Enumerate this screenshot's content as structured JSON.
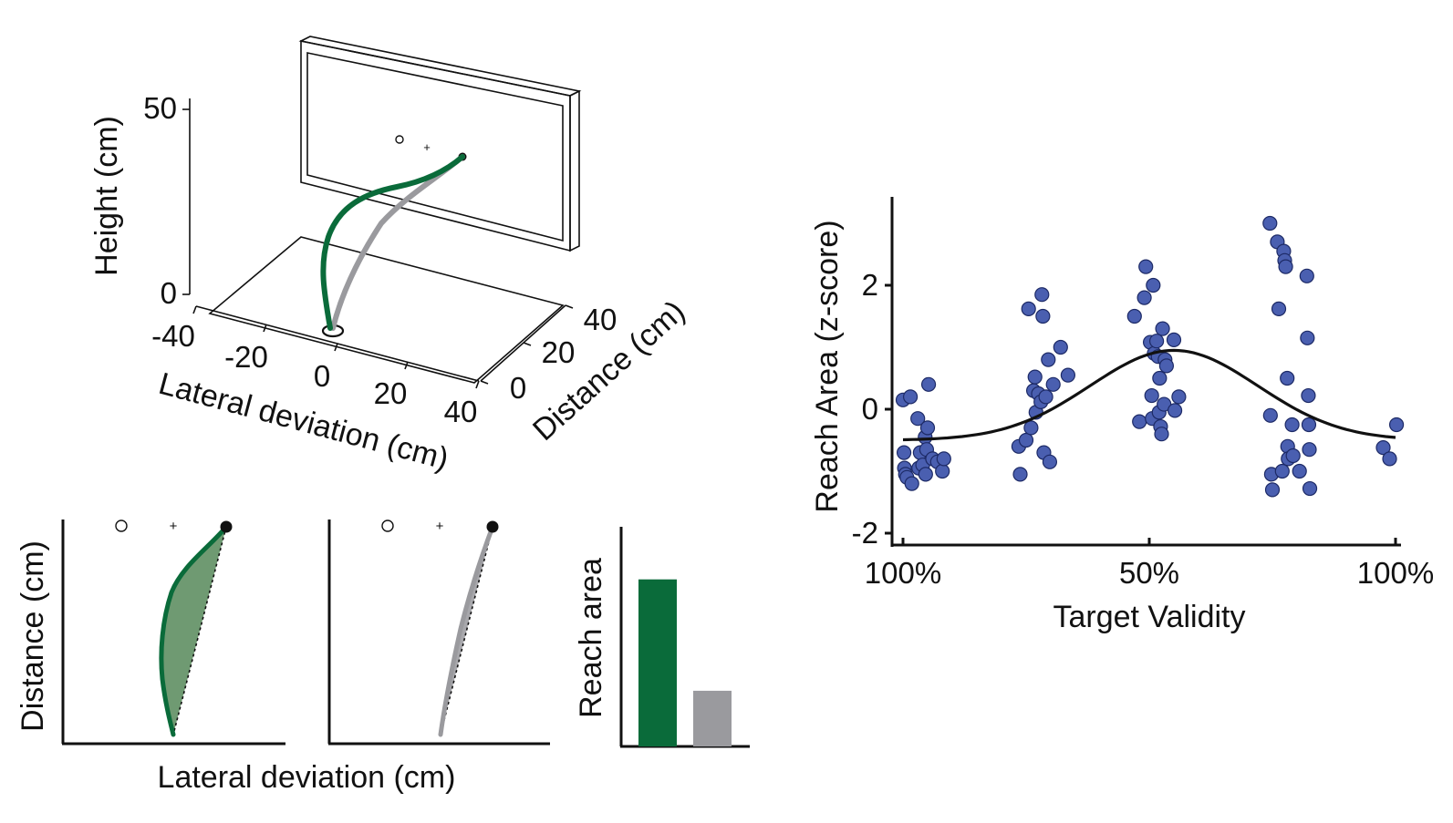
{
  "colors": {
    "green": "#0a6b3a",
    "green_fill": "#6f9a72",
    "gray": "#9a9a9e",
    "gray_fill": "#a8a8ac",
    "point": "#4a5fb0",
    "point_edge": "#1d2a66",
    "axis": "#111111"
  },
  "chart_data": [
    {
      "type": "line",
      "view": "3d-trajectory",
      "axes": {
        "z_label": "Height (cm)",
        "z_ticks": [
          "50",
          "0"
        ],
        "x_label": "Lateral deviation (cm)",
        "x_ticks": [
          "-40",
          "-20",
          "0",
          "20",
          "40"
        ],
        "y_label": "Distance (cm)",
        "y_ticks": [
          "0",
          "20",
          "40"
        ]
      },
      "series": [
        {
          "color": "green",
          "x": [
            0,
            -4,
            -3,
            4,
            12,
            20
          ],
          "y": [
            0,
            8,
            18,
            28,
            36,
            40
          ],
          "z": [
            0,
            10,
            22,
            30,
            34,
            36
          ]
        },
        {
          "color": "gray",
          "x": [
            0,
            4,
            9,
            14,
            20
          ],
          "y": [
            0,
            10,
            20,
            30,
            40
          ],
          "z": [
            0,
            9,
            20,
            29,
            36
          ]
        }
      ]
    },
    {
      "type": "area",
      "view": "top-down-trajectory",
      "xlabel": "Lateral deviation (cm)",
      "ylabel": "Distance (cm)",
      "panels": [
        {
          "color": "green",
          "path_x": [
            0,
            -8,
            -12,
            -11,
            -5,
            0
          ],
          "path_y": [
            0,
            30,
            55,
            70,
            88,
            100
          ]
        },
        {
          "color": "gray",
          "path_x": [
            0,
            1.5,
            2.5,
            3,
            2,
            0
          ],
          "path_y": [
            0,
            30,
            55,
            70,
            88,
            100
          ]
        }
      ]
    },
    {
      "type": "bar",
      "ylabel": "Reach area",
      "categories": [
        "green",
        "gray"
      ],
      "values": [
        0.78,
        0.26
      ]
    },
    {
      "type": "scatter",
      "xlabel": "Target Validity",
      "ylabel": "Reach Area (z-score)",
      "x_tick_labels": [
        "100%",
        "50%",
        "100%"
      ],
      "x_tick_positions": [
        0,
        50,
        100
      ],
      "ylim": [
        -2.2,
        3.2
      ],
      "xlim": [
        -1,
        102
      ],
      "y_ticks": [
        -2,
        0,
        2
      ],
      "points": [
        [
          0,
          0.15
        ],
        [
          0.2,
          -0.7
        ],
        [
          0.3,
          -0.95
        ],
        [
          0.5,
          -1.05
        ],
        [
          0.8,
          -1.1
        ],
        [
          1.5,
          0.2
        ],
        [
          1.8,
          -1.2
        ],
        [
          3,
          -0.15
        ],
        [
          3.2,
          -0.95
        ],
        [
          3.5,
          -0.7
        ],
        [
          4.5,
          -0.45
        ],
        [
          4.8,
          -0.65
        ],
        [
          5.0,
          -0.3
        ],
        [
          5.2,
          0.4
        ],
        [
          4.0,
          -0.9
        ],
        [
          4.6,
          -1.05
        ],
        [
          6.0,
          -0.8
        ],
        [
          7.0,
          -0.85
        ],
        [
          8.0,
          -1.0
        ],
        [
          8.3,
          -0.8
        ],
        [
          23.5,
          -0.6
        ],
        [
          23.8,
          -1.05
        ],
        [
          25,
          -0.5
        ],
        [
          25.5,
          1.62
        ],
        [
          26,
          -0.3
        ],
        [
          26.5,
          0.3
        ],
        [
          26.8,
          0.52
        ],
        [
          27,
          -0.05
        ],
        [
          27.5,
          0.25
        ],
        [
          28,
          0.12
        ],
        [
          28.2,
          1.85
        ],
        [
          28.4,
          1.5
        ],
        [
          28.6,
          -0.7
        ],
        [
          29,
          0.2
        ],
        [
          29.5,
          0.8
        ],
        [
          29.8,
          -0.85
        ],
        [
          30.5,
          0.4
        ],
        [
          32,
          1.0
        ],
        [
          33.5,
          0.55
        ],
        [
          47,
          1.5
        ],
        [
          48,
          -0.2
        ],
        [
          49,
          1.8
        ],
        [
          49.3,
          2.3
        ],
        [
          50.2,
          1.08
        ],
        [
          50.5,
          0.22
        ],
        [
          50.6,
          -0.15
        ],
        [
          50.8,
          2.0
        ],
        [
          51.0,
          0.9
        ],
        [
          51.5,
          1.1
        ],
        [
          51.8,
          0.85
        ],
        [
          52.0,
          -0.05
        ],
        [
          52.1,
          0.5
        ],
        [
          52.3,
          -0.28
        ],
        [
          52.5,
          -0.4
        ],
        [
          52.7,
          1.3
        ],
        [
          53.0,
          0.08
        ],
        [
          53.2,
          0.8
        ],
        [
          53.5,
          0.7
        ],
        [
          55.0,
          1.12
        ],
        [
          55.2,
          -0.02
        ],
        [
          56.0,
          0.2
        ],
        [
          74.5,
          3.0
        ],
        [
          74.6,
          -0.1
        ],
        [
          74.8,
          -1.05
        ],
        [
          75.0,
          -1.3
        ],
        [
          76,
          2.7
        ],
        [
          76.3,
          1.62
        ],
        [
          77,
          -1.0
        ],
        [
          77.3,
          2.55
        ],
        [
          77.5,
          2.4
        ],
        [
          77.7,
          2.3
        ],
        [
          78.0,
          0.5
        ],
        [
          78.1,
          -0.6
        ],
        [
          78.2,
          -0.8
        ],
        [
          79.0,
          -0.25
        ],
        [
          79.2,
          -0.75
        ],
        [
          80.5,
          -1.0
        ],
        [
          82.0,
          2.15
        ],
        [
          82.1,
          1.15
        ],
        [
          82.3,
          0.22
        ],
        [
          82.4,
          -0.25
        ],
        [
          82.5,
          -0.65
        ],
        [
          82.6,
          -1.28
        ],
        [
          97.5,
          -0.62
        ],
        [
          98.8,
          -0.8
        ],
        [
          100.2,
          -0.25
        ]
      ],
      "fit": {
        "kind": "gaussian",
        "baseline": -0.5,
        "amplitude": 1.45,
        "center": 55,
        "width": 17
      }
    }
  ]
}
